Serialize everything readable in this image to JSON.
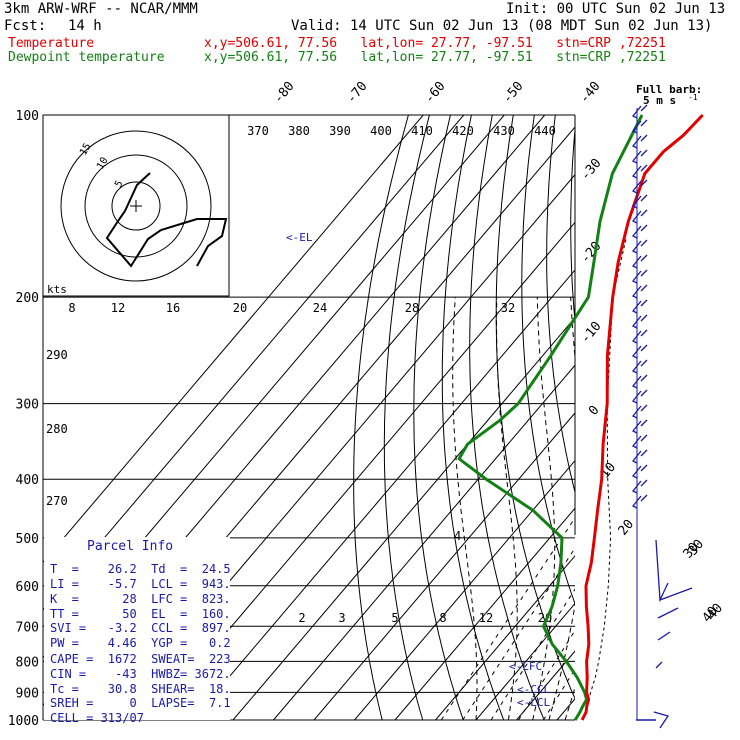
{
  "header": {
    "model": "3km ARW-WRF -- NCAR/MMM",
    "init": "Init: 00 UTC Sun 02 Jun 13",
    "fcst_label": "Fcst:",
    "fcst_value": "14 h",
    "valid": "Valid: 14 UTC Sun 02 Jun 13 (08 MDT Sun 02 Jun 13)",
    "temperature_label": "Temperature",
    "dewpoint_label": "Dewpoint temperature",
    "location": "x,y=506.61, 77.56   lat,lon= 27.77, -97.51   stn=CRP ,72251"
  },
  "chart_data": {
    "type": "skew-t",
    "pressure_labels": [
      "100",
      "200",
      "300",
      "400",
      "500",
      "600",
      "700",
      "800",
      "900",
      "1000"
    ],
    "isotherm_labels_top": [
      "-80",
      "-70",
      "-60",
      "-50",
      "-40"
    ],
    "isotherm_labels_right": [
      "-30",
      "-20",
      "-10",
      "0",
      "10",
      "20",
      "30",
      "40"
    ],
    "theta_labels": [
      "370",
      "380",
      "390",
      "400",
      "410",
      "420",
      "430",
      "440"
    ],
    "mixing_ratio_top_labels": [
      "8",
      "12",
      "16",
      "20",
      "24",
      "28",
      "32"
    ],
    "mixing_ratio_bottom_labels": [
      "2",
      "3",
      "5",
      "8",
      "12",
      "20"
    ],
    "theta_left_labels": [
      "290",
      "280",
      "270"
    ],
    "theta_e_label": "4",
    "el_marker": "<-EL",
    "lfc_marker": "<-LFC",
    "ccl_marker": "<-CCL",
    "lcl_marker": "<-LCL",
    "temperature": [
      {
        "p": 1000,
        "t": 26.2
      },
      {
        "p": 970,
        "t": 25.5
      },
      {
        "p": 950,
        "t": 24.5
      },
      {
        "p": 925,
        "t": 23.5
      },
      {
        "p": 900,
        "t": 21.5
      },
      {
        "p": 850,
        "t": 18.5
      },
      {
        "p": 800,
        "t": 15.0
      },
      {
        "p": 750,
        "t": 12.0
      },
      {
        "p": 700,
        "t": 8.0
      },
      {
        "p": 650,
        "t": 3.5
      },
      {
        "p": 600,
        "t": -1.0
      },
      {
        "p": 550,
        "t": -4.5
      },
      {
        "p": 500,
        "t": -9.0
      },
      {
        "p": 450,
        "t": -14.0
      },
      {
        "p": 400,
        "t": -19.5
      },
      {
        "p": 350,
        "t": -26.5
      },
      {
        "p": 300,
        "t": -34.0
      },
      {
        "p": 250,
        "t": -44.0
      },
      {
        "p": 200,
        "t": -55.0
      },
      {
        "p": 175,
        "t": -61.0
      },
      {
        "p": 150,
        "t": -67.0
      },
      {
        "p": 125,
        "t": -73.0
      },
      {
        "p": 115,
        "t": -73.0
      },
      {
        "p": 108,
        "t": -71.5
      },
      {
        "p": 100,
        "t": -71.0
      }
    ],
    "dewpoint": [
      {
        "p": 1000,
        "t": 24.5
      },
      {
        "p": 970,
        "t": 24.0
      },
      {
        "p": 950,
        "t": 23.5
      },
      {
        "p": 925,
        "t": 23.0
      },
      {
        "p": 900,
        "t": 21.0
      },
      {
        "p": 850,
        "t": 16.0
      },
      {
        "p": 800,
        "t": 10.0
      },
      {
        "p": 750,
        "t": 3.0
      },
      {
        "p": 700,
        "t": -3.0
      },
      {
        "p": 650,
        "t": -5.0
      },
      {
        "p": 600,
        "t": -8.0
      },
      {
        "p": 550,
        "t": -12.0
      },
      {
        "p": 500,
        "t": -17.0
      },
      {
        "p": 450,
        "t": -30.0
      },
      {
        "p": 400,
        "t": -48.0
      },
      {
        "p": 370,
        "t": -59.0
      },
      {
        "p": 350,
        "t": -60.0
      },
      {
        "p": 320,
        "t": -57.0
      },
      {
        "p": 300,
        "t": -56.0
      },
      {
        "p": 250,
        "t": -58.0
      },
      {
        "p": 200,
        "t": -61.0
      },
      {
        "p": 175,
        "t": -67.0
      },
      {
        "p": 150,
        "t": -74.0
      },
      {
        "p": 125,
        "t": -81.0
      },
      {
        "p": 100,
        "t": -86.0
      }
    ],
    "parcel": [
      {
        "p": 950,
        "t": 24.5
      },
      {
        "p": 900,
        "t": 22.5
      },
      {
        "p": 850,
        "t": 20.5
      },
      {
        "p": 800,
        "t": 18.0
      },
      {
        "p": 700,
        "t": 12.0
      },
      {
        "p": 600,
        "t": 4.5
      },
      {
        "p": 500,
        "t": -5.0
      },
      {
        "p": 400,
        "t": -18.0
      },
      {
        "p": 300,
        "t": -34.0
      },
      {
        "p": 200,
        "t": -55.0
      },
      {
        "p": 160,
        "t": -64.0
      }
    ],
    "hodograph_label": "kts",
    "hodograph_ring_labels": [
      "5",
      "10",
      "15"
    ]
  },
  "wind_barbs": {
    "title_line1": "Full barb:",
    "title_line2": "5 m s",
    "speed_labels": [
      "30",
      "40"
    ]
  },
  "parcel_info": {
    "title": "Parcel Info",
    "rows": [
      "T  =    26.2  Td  =  24.5",
      "LI =    -5.7  LCL =  943.",
      "K  =      28  LFC =  823.",
      "TT =      50  EL  =  160.",
      "SVI =   -3.2  CCL =  897.",
      "PW =    4.46  YGP =   0.2",
      "CAPE =  1672  SWEAT=  223",
      "CIN =    -43  HWBZ= 3672.",
      "Tc =    30.8  SHEAR=  18.",
      "SREH =     0  LAPSE=  7.1",
      "CELL = 313/07"
    ]
  },
  "colors": {
    "temperature": "#e00000",
    "dewpoint": "#138013",
    "parcel": "#000000",
    "grid": "#000000",
    "barbs": "#1a1aaa",
    "info_text": "#1a1aaa"
  }
}
